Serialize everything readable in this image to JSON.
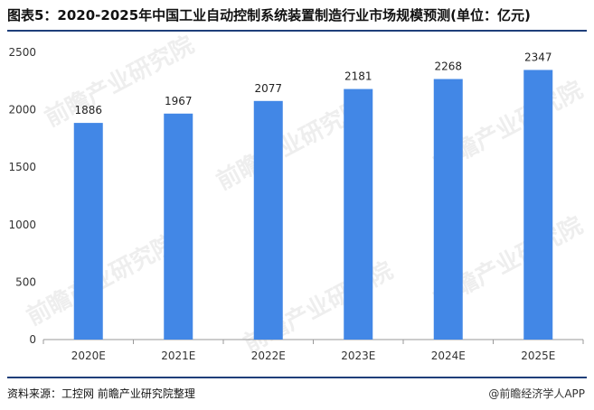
{
  "header": {
    "title": "图表5：2020-2025年中国工业自动控制系统装置制造行业市场规模预测(单位：亿元)"
  },
  "footer": {
    "source": "资料来源：工控网 前瞻产业研究院整理",
    "brand": "@前瞻经济学人APP"
  },
  "watermark": "前瞻产业研究院",
  "colors": {
    "bar": "#4287e6",
    "rule": "#1f3f7a",
    "axis": "#999999"
  },
  "chart_data": {
    "type": "bar",
    "categories": [
      "2020E",
      "2021E",
      "2022E",
      "2023E",
      "2024E",
      "2025E"
    ],
    "values": [
      1886,
      1967,
      2077,
      2181,
      2268,
      2347
    ],
    "data_labels": [
      "1886",
      "1967",
      "2077",
      "2181",
      "2268",
      "2347"
    ],
    "yticks": [
      0,
      500,
      1000,
      1500,
      2000,
      2500
    ],
    "ylim": [
      0,
      2500
    ],
    "grid": false,
    "legend": "none",
    "title": "",
    "xlabel": "",
    "ylabel": ""
  }
}
